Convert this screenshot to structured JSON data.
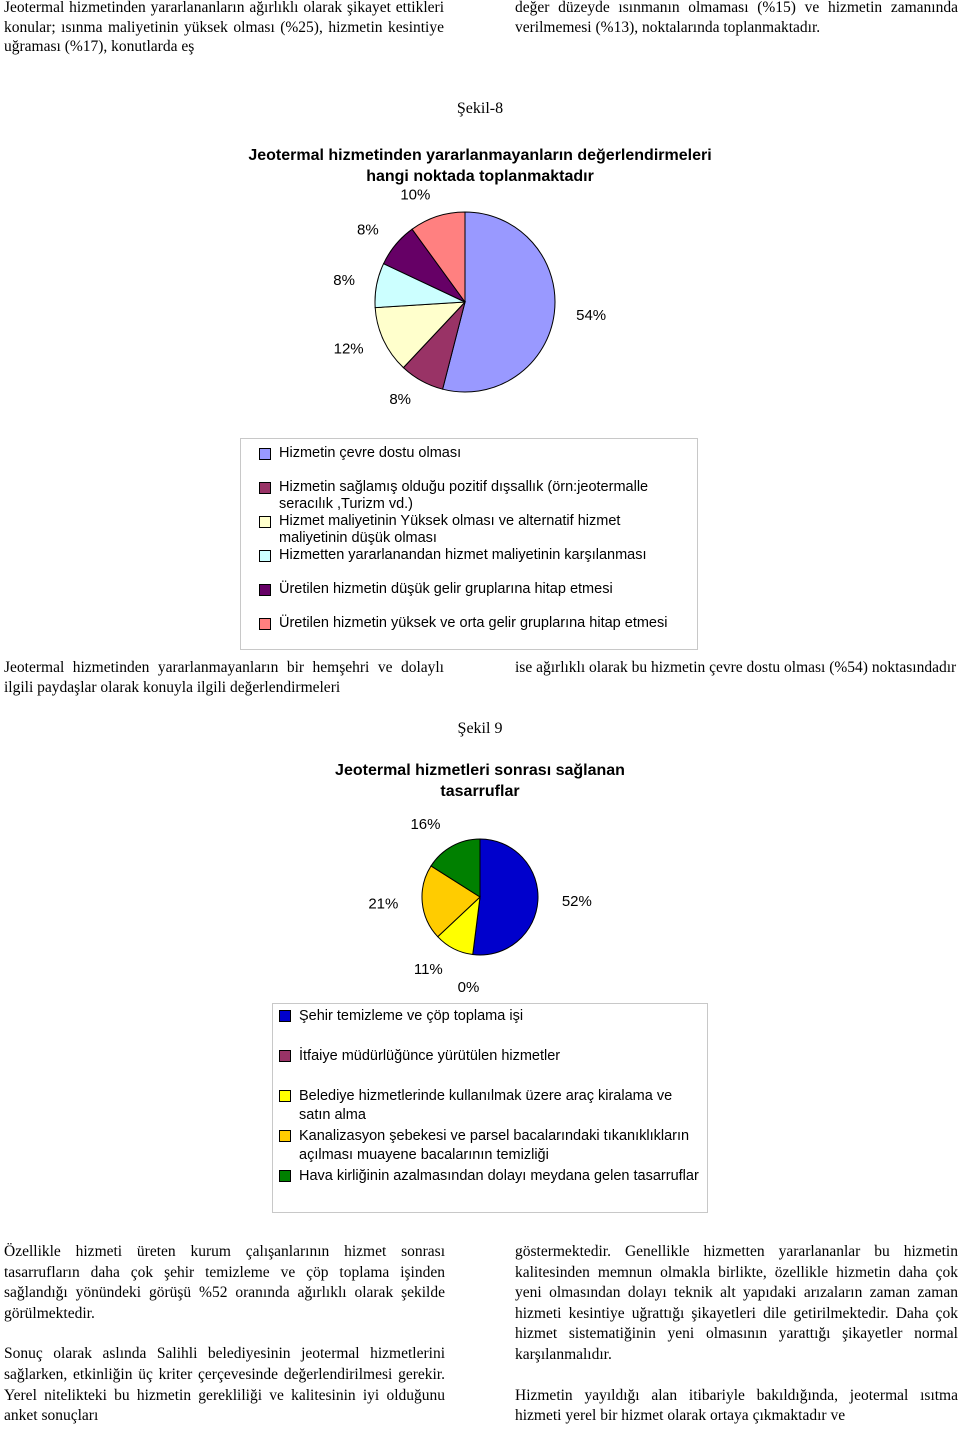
{
  "top": {
    "left": "Jeotermal hizmetinden yararlananların ağırlıklı olarak şikayet ettikleri konular; ısınma maliyetinin yüksek olması (%25), hizmetin kesintiye uğraması (%17), konutlarda eş",
    "right": "değer düzeyde ısınmanın olmaması (%15) ve hizmetin zamanında verilmemesi (%13), noktalarında toplanmaktadır."
  },
  "middle": {
    "left": "Jeotermal hizmetinden yararlanmayanların bir hemşehri ve dolaylı ilgili paydaşlar olarak konuyla ilgili değerlendirmeleri",
    "right": "ise ağırlıklı olarak bu hizmetin çevre dostu olması (%54) noktasındadır"
  },
  "bottom": {
    "left": [
      "Özellikle hizmeti üreten kurum çalışanlarının hizmet sonrası tasarrufların daha çok şehir temizleme ve çöp toplama işinden sağlandığı yönündeki görüşü %52 oranında ağırlıklı olarak şekilde görülmektedir.",
      "Sonuç olarak aslında Salihli belediyesinin jeotermal hizmetlerini sağlarken, etkinliğin üç kriter çerçevesinde değerlendirilmesi gerekir. Yerel nitelikteki bu hizmetin gerekliliği ve kalitesinin iyi olduğunu anket sonuçları"
    ],
    "right": [
      "göstermektedir. Genellikle hizmetten yararlananlar bu hizmetin kalitesinden memnun olmakla birlikte, özellikle hizmetin daha çok yeni olmasından dolayı teknik alt yapıdaki arızaların zaman zaman hizmeti kesintiye uğrattığı şikayetleri dile getirilmektedir. Daha çok hizmet sistematiğinin yeni olmasının yarattığı şikayetler normal karşılanmalıdır.",
      "Hizmetin yayıldığı alan itibariyle bakıldığında, jeotermal ısıtma hizmeti yerel bir hizmet olarak ortaya çıkmaktadır ve"
    ]
  },
  "chart_data": [
    {
      "type": "pie",
      "caption": "Şekil-8",
      "title": "Jeotermal hizmetinden yararlanmayanların değerlendirmeleri hangi noktada toplanmaktadır",
      "categories": [
        "Hizmetin çevre dostu olması",
        "Hizmetin sağlamış olduğu pozitif dışsallık (örn:jeotermalle seracılık ,Turizm vd.)",
        "Hizmet maliyetinin Yüksek olması ve alternatif hizmet maliyetinin düşük olması",
        "Hizmetten yararlanandan hizmet maliyetinin karşılanması",
        "Üretilen hizmetin düşük gelir gruplarına hitap etmesi",
        "Üretilen hizmetin yüksek ve orta  gelir gruplarına hitap etmesi"
      ],
      "values": [
        54,
        8,
        12,
        8,
        8,
        10
      ],
      "value_labels": [
        "54%",
        "8%",
        "12%",
        "8%",
        "8%",
        "10%"
      ],
      "colors": [
        "#9999ff",
        "#993366",
        "#ffffcc",
        "#ccffff",
        "#660066",
        "#ff8080"
      ]
    },
    {
      "type": "pie",
      "caption": "Şekil 9",
      "title": "Jeotermal hizmetleri sonrası sağlanan tasarruflar",
      "categories": [
        "Şehir temizleme ve çöp toplama işi",
        "İtfaiye müdürlüğünce yürütülen hizmetler",
        "Belediye hizmetlerinde kullanılmak üzere araç kiralama ve satın alma",
        "Kanalizasyon şebekesi ve parsel bacalarındaki tıkanıklıkların açılması muayene bacalarının temizliği",
        "Hava kirliğinin azalmasından dolayı meydana gelen tasarruflar"
      ],
      "values": [
        52,
        0,
        11,
        21,
        16
      ],
      "value_labels": [
        "52%",
        "0%",
        "11%",
        "21%",
        "16%"
      ],
      "colors": [
        "#0000cc",
        "#993366",
        "#ffff00",
        "#ffcc00",
        "#008000"
      ]
    }
  ]
}
